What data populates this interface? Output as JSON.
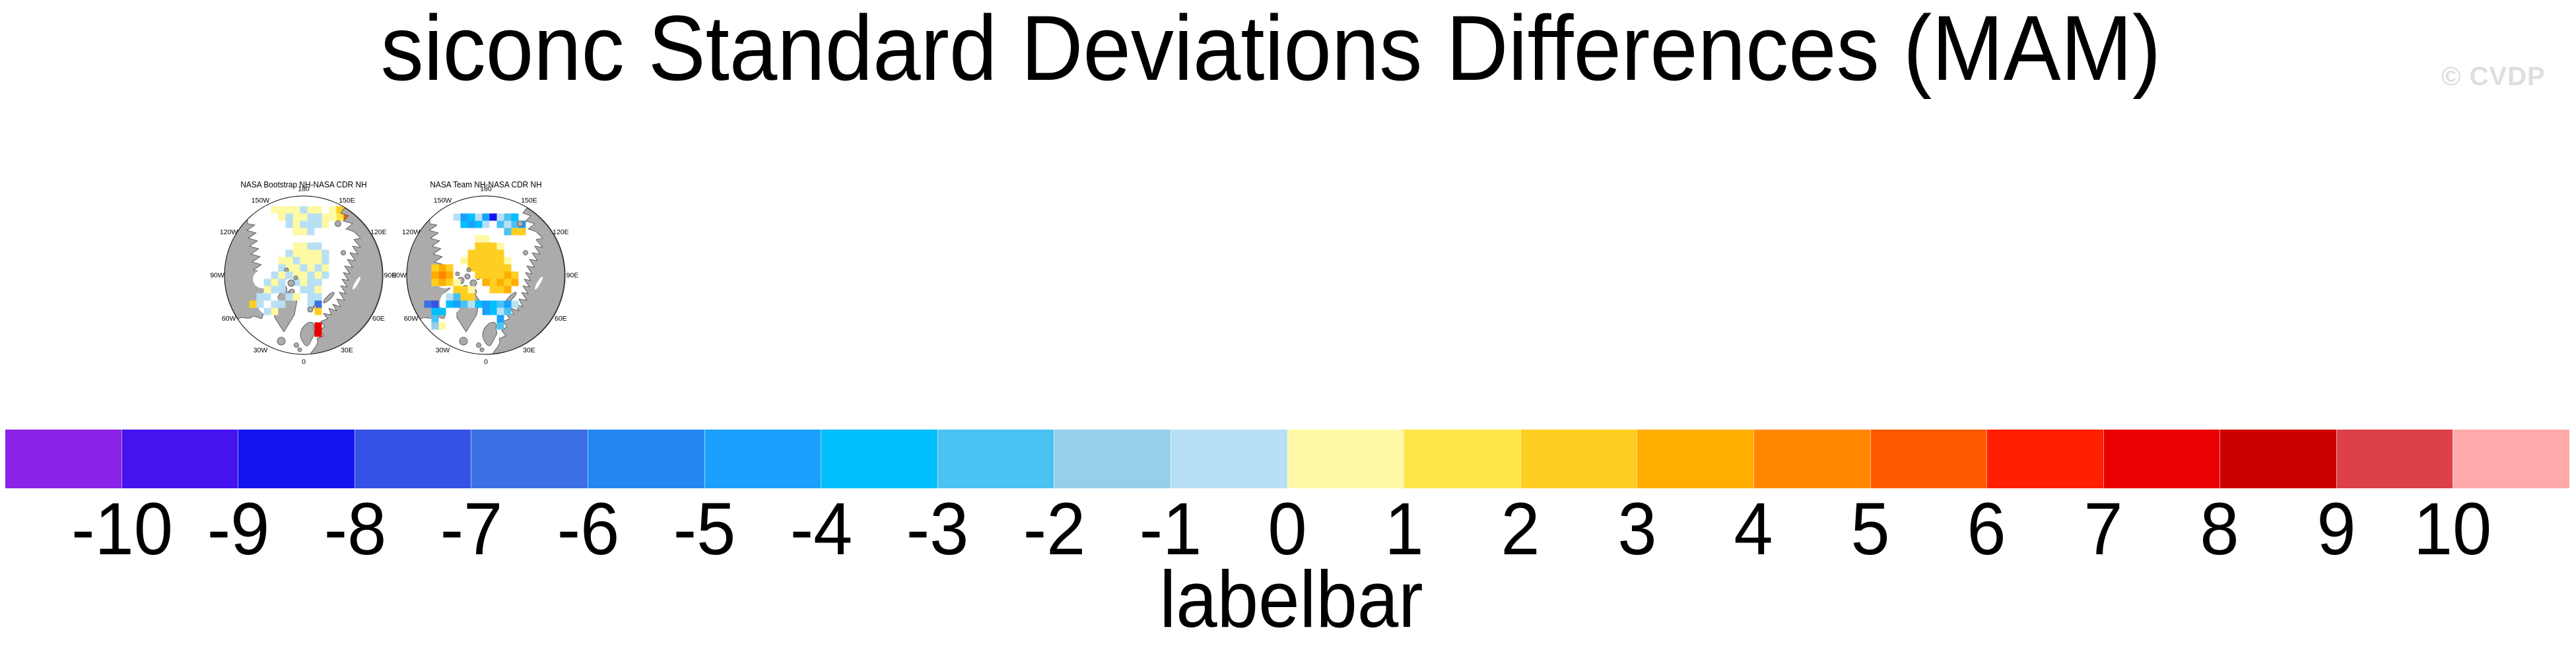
{
  "header": {
    "title": "siconc Standard Deviations Differences (MAM)",
    "watermark": "© CVDP"
  },
  "style": {
    "background": "#FFFFFF",
    "land": "#ABABAB",
    "coast": "#4A4A4A",
    "ocean": "#FFFFFF",
    "map_outline": "#000000",
    "watermark_color": "#DEDEDE",
    "text_color": "#000000"
  },
  "chart_data": [
    {
      "type": "map",
      "panel": "left",
      "title": "NASA Bootstrap NH-NASA CDR NH",
      "projection": "north-polar-stereographic",
      "ring_labels": [
        "180",
        "150E",
        "120E",
        "90E",
        "60E",
        "30E",
        "0",
        "30W",
        "60W",
        "90W",
        "120W",
        "150W"
      ],
      "units": "standard deviation difference, indexed into labelbar palette",
      "cells": [
        [
          -44,
          -99,
          11
        ],
        [
          -33,
          -99,
          11
        ],
        [
          -22,
          -99,
          11
        ],
        [
          -11,
          -99,
          11
        ],
        [
          0,
          -99,
          10
        ],
        [
          11,
          -99,
          11
        ],
        [
          22,
          -99,
          11
        ],
        [
          44,
          -99,
          11
        ],
        [
          55,
          -99,
          13
        ],
        [
          66,
          -88,
          16
        ],
        [
          -33,
          -88,
          11
        ],
        [
          -22,
          -88,
          10
        ],
        [
          -11,
          -88,
          11
        ],
        [
          0,
          -88,
          11
        ],
        [
          11,
          -88,
          10
        ],
        [
          22,
          -88,
          10
        ],
        [
          33,
          -88,
          11
        ],
        [
          44,
          -88,
          11
        ],
        [
          55,
          -88,
          12
        ],
        [
          -22,
          -77,
          10
        ],
        [
          -11,
          -77,
          11
        ],
        [
          0,
          -77,
          10
        ],
        [
          11,
          -77,
          10
        ],
        [
          22,
          -77,
          10
        ],
        [
          33,
          -77,
          11
        ],
        [
          -11,
          -66,
          11
        ],
        [
          0,
          -66,
          11
        ],
        [
          11,
          -66,
          10
        ],
        [
          -11,
          -44,
          11
        ],
        [
          0,
          -44,
          11
        ],
        [
          11,
          -44,
          10
        ],
        [
          22,
          -44,
          10
        ],
        [
          -22,
          -33,
          10
        ],
        [
          -11,
          -33,
          11
        ],
        [
          0,
          -33,
          11
        ],
        [
          11,
          -33,
          11
        ],
        [
          22,
          -33,
          11
        ],
        [
          33,
          -33,
          10
        ],
        [
          -33,
          -22,
          11
        ],
        [
          -22,
          -22,
          11
        ],
        [
          -11,
          -22,
          10
        ],
        [
          0,
          -22,
          11
        ],
        [
          11,
          -22,
          11
        ],
        [
          22,
          -22,
          11
        ],
        [
          33,
          -22,
          10
        ],
        [
          -33,
          -11,
          10
        ],
        [
          -22,
          -11,
          11
        ],
        [
          -11,
          -11,
          11
        ],
        [
          0,
          -11,
          10
        ],
        [
          11,
          -11,
          11
        ],
        [
          22,
          -11,
          10
        ],
        [
          33,
          -11,
          11
        ],
        [
          -11,
          0,
          11
        ],
        [
          0,
          0,
          11
        ],
        [
          11,
          0,
          10
        ],
        [
          22,
          0,
          11
        ],
        [
          33,
          0,
          10
        ],
        [
          -11,
          11,
          10
        ],
        [
          0,
          11,
          11
        ],
        [
          11,
          11,
          10
        ],
        [
          22,
          11,
          10
        ],
        [
          0,
          22,
          10
        ],
        [
          11,
          22,
          10
        ],
        [
          22,
          22,
          11
        ],
        [
          11,
          33,
          10
        ],
        [
          22,
          33,
          10
        ],
        [
          11,
          44,
          10
        ],
        [
          22,
          44,
          4
        ],
        [
          -44,
          0,
          10,
          1
        ],
        [
          -33,
          0,
          11,
          1
        ],
        [
          -22,
          0,
          10,
          1
        ],
        [
          -55,
          11,
          10,
          1
        ],
        [
          -44,
          11,
          11,
          1
        ],
        [
          -33,
          11,
          10,
          1
        ],
        [
          -55,
          22,
          11,
          1
        ],
        [
          -44,
          22,
          10,
          1
        ],
        [
          -33,
          22,
          10,
          1
        ],
        [
          -66,
          33,
          10,
          1
        ],
        [
          -55,
          33,
          10,
          1
        ],
        [
          -22,
          33,
          10,
          1
        ],
        [
          -11,
          33,
          11,
          1
        ],
        [
          -77,
          44,
          13,
          1
        ],
        [
          -66,
          44,
          10,
          1
        ],
        [
          -44,
          44,
          10,
          1
        ],
        [
          -33,
          44,
          10,
          1
        ],
        [
          -55,
          55,
          10,
          1
        ],
        [
          -44,
          55,
          11,
          1
        ],
        [
          22,
          55,
          13,
          1
        ],
        [
          22,
          77,
          18,
          1
        ],
        [
          22,
          88,
          18,
          1
        ]
      ]
    },
    {
      "type": "map",
      "panel": "right",
      "title": "NASA Team NH-NASA CDR NH",
      "projection": "north-polar-stereographic",
      "ring_labels": [
        "180",
        "150E",
        "120E",
        "90E",
        "60E",
        "30E",
        "0",
        "30W",
        "60W",
        "90W",
        "120W",
        "150W"
      ],
      "units": "standard deviation difference, indexed into labelbar palette",
      "cells": [
        [
          -44,
          -88,
          10
        ],
        [
          -33,
          -88,
          6
        ],
        [
          -22,
          -88,
          7
        ],
        [
          -11,
          -88,
          10
        ],
        [
          0,
          -88,
          6
        ],
        [
          11,
          -88,
          2
        ],
        [
          22,
          -88,
          10
        ],
        [
          33,
          -88,
          8
        ],
        [
          44,
          -88,
          7
        ],
        [
          -33,
          -77,
          7
        ],
        [
          -22,
          -77,
          6
        ],
        [
          -11,
          -77,
          7
        ],
        [
          0,
          -77,
          10
        ],
        [
          22,
          -77,
          8
        ],
        [
          33,
          -77,
          10
        ],
        [
          44,
          -77,
          8
        ],
        [
          55,
          -77,
          6
        ],
        [
          33,
          -66,
          8
        ],
        [
          -11,
          -55,
          11
        ],
        [
          0,
          -55,
          11
        ],
        [
          -11,
          -44,
          13
        ],
        [
          0,
          -44,
          13
        ],
        [
          11,
          -44,
          13
        ],
        [
          22,
          -44,
          11
        ],
        [
          -22,
          -33,
          13
        ],
        [
          -11,
          -33,
          13
        ],
        [
          0,
          -33,
          13
        ],
        [
          11,
          -33,
          13
        ],
        [
          22,
          -33,
          13
        ],
        [
          -33,
          -22,
          11
        ],
        [
          -22,
          -22,
          13
        ],
        [
          -11,
          -22,
          13
        ],
        [
          0,
          -22,
          13
        ],
        [
          11,
          -22,
          13
        ],
        [
          22,
          -22,
          13
        ],
        [
          33,
          -22,
          11
        ],
        [
          -22,
          -11,
          13
        ],
        [
          -11,
          -11,
          13
        ],
        [
          0,
          -11,
          13
        ],
        [
          11,
          -11,
          13
        ],
        [
          22,
          -11,
          13
        ],
        [
          33,
          -11,
          13
        ],
        [
          0,
          0,
          13
        ],
        [
          11,
          0,
          13
        ],
        [
          22,
          0,
          13
        ],
        [
          33,
          0,
          14
        ],
        [
          44,
          0,
          13
        ],
        [
          22,
          11,
          14
        ],
        [
          33,
          11,
          13
        ],
        [
          44,
          11,
          14
        ],
        [
          44,
          -66,
          13,
          1
        ],
        [
          55,
          -66,
          13,
          1
        ],
        [
          -77,
          -11,
          13,
          1
        ],
        [
          -66,
          -11,
          14,
          1
        ],
        [
          -55,
          -11,
          13,
          1
        ],
        [
          -77,
          0,
          14,
          1
        ],
        [
          -66,
          0,
          15,
          1
        ],
        [
          -55,
          0,
          14,
          1
        ],
        [
          -77,
          11,
          13,
          1
        ],
        [
          -66,
          11,
          14,
          1
        ],
        [
          -55,
          11,
          13,
          1
        ],
        [
          -44,
          11,
          11,
          1
        ],
        [
          -11,
          0,
          13,
          1
        ],
        [
          0,
          11,
          14,
          1
        ],
        [
          11,
          11,
          13,
          1
        ],
        [
          -44,
          22,
          13,
          1
        ],
        [
          -33,
          22,
          13,
          1
        ],
        [
          -22,
          22,
          11,
          1
        ],
        [
          11,
          22,
          13,
          1
        ],
        [
          22,
          22,
          13,
          1
        ],
        [
          33,
          22,
          14,
          1
        ],
        [
          -33,
          33,
          13,
          1
        ],
        [
          -22,
          33,
          13,
          1
        ],
        [
          -55,
          33,
          10,
          1
        ],
        [
          -44,
          33,
          8,
          1
        ],
        [
          -88,
          44,
          4,
          1
        ],
        [
          -77,
          44,
          3,
          1
        ],
        [
          -55,
          44,
          7,
          1
        ],
        [
          -44,
          44,
          6,
          1
        ],
        [
          -33,
          44,
          8,
          1
        ],
        [
          -22,
          44,
          10,
          1
        ],
        [
          -11,
          44,
          7,
          1
        ],
        [
          0,
          44,
          6,
          1
        ],
        [
          11,
          44,
          7,
          1
        ],
        [
          22,
          44,
          8,
          1
        ],
        [
          33,
          44,
          6,
          1
        ],
        [
          44,
          44,
          10,
          1
        ],
        [
          -77,
          55,
          7,
          1
        ],
        [
          -66,
          55,
          7,
          1
        ],
        [
          0,
          55,
          6,
          1
        ],
        [
          11,
          55,
          7,
          1
        ],
        [
          22,
          55,
          10,
          1
        ],
        [
          33,
          55,
          8,
          1
        ],
        [
          -77,
          66,
          8,
          1
        ],
        [
          -77,
          77,
          9,
          1
        ],
        [
          -66,
          77,
          11,
          1
        ],
        [
          22,
          66,
          6,
          1
        ],
        [
          22,
          77,
          8,
          1
        ]
      ]
    },
    {
      "type": "colorbar",
      "label": "labelbar",
      "orientation": "horizontal",
      "n_segments": 22,
      "tick_values": [
        -10,
        -9,
        -8,
        -7,
        -6,
        -5,
        -4,
        -3,
        -2,
        -1,
        0,
        1,
        2,
        3,
        4,
        5,
        6,
        7,
        8,
        9,
        10
      ],
      "tick_labels": [
        "-10",
        "-9",
        "-8",
        "-7",
        "-6",
        "-5",
        "-4",
        "-3",
        "-2",
        "-1",
        "0",
        "1",
        "2",
        "3",
        "4",
        "5",
        "6",
        "7",
        "8",
        "9",
        "10"
      ],
      "segment_colors": [
        "#8B23E6",
        "#4413EE",
        "#1414F0",
        "#3452E6",
        "#3B70E4",
        "#2487F2",
        "#1AA0FC",
        "#00BFFC",
        "#4AC2F2",
        "#96CFEA",
        "#B8E0F5",
        "#FDF9A4",
        "#FFE648",
        "#FFCE22",
        "#FFAE00",
        "#FF8800",
        "#FF5A00",
        "#FF1E00",
        "#EA0000",
        "#CC0000",
        "#DC4048",
        "#FFAAAA"
      ]
    }
  ]
}
